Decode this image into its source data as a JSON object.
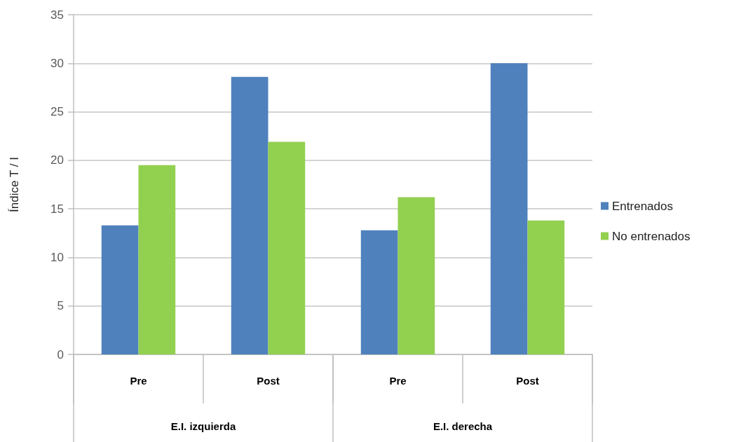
{
  "chart_data": {
    "type": "bar",
    "ylabel": "Índice T / I",
    "categories": [
      "Pre",
      "Post",
      "Pre",
      "Post"
    ],
    "annotations": [
      "E.I. izquierda",
      "E.I. derecha"
    ],
    "series": [
      {
        "name": "Entrenados",
        "color": "#4f81bd",
        "values": [
          13.3,
          28.6,
          12.8,
          30.0
        ]
      },
      {
        "name": "No entrenados",
        "color": "#92d050",
        "values": [
          19.5,
          21.9,
          16.2,
          13.8
        ]
      }
    ],
    "ylim": [
      0,
      35
    ],
    "yticks": [
      0,
      5,
      10,
      15,
      20,
      25,
      30,
      35
    ],
    "grid": "y",
    "legend": "right"
  }
}
